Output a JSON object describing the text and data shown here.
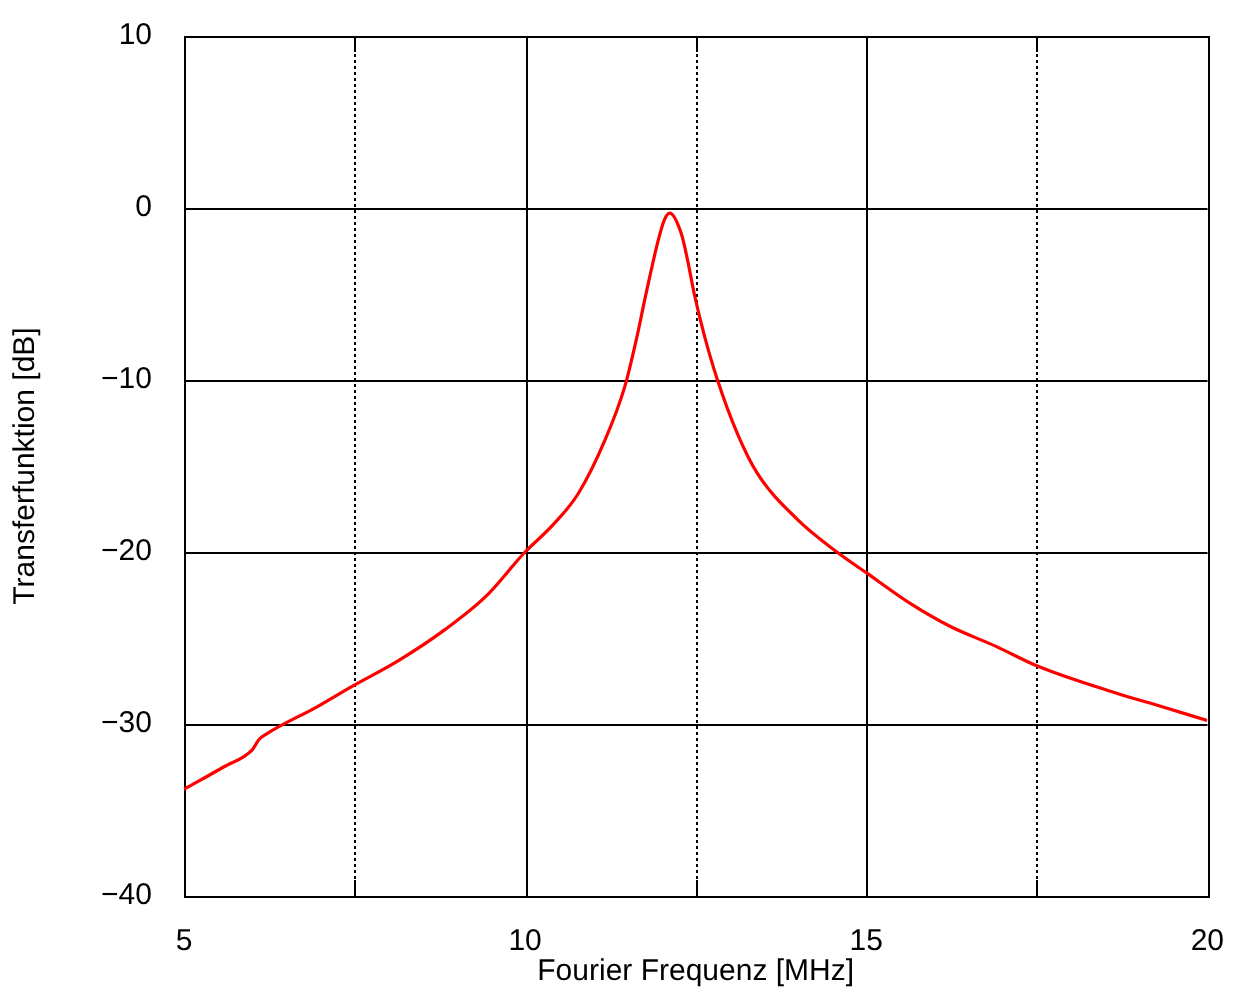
{
  "chart_data": {
    "type": "line",
    "xlabel": "Fourier Frequenz [MHz]",
    "ylabel": "Transferfunktion [dB]",
    "x": [
      5,
      5.58,
      6.0,
      6.1,
      6.2,
      6.95,
      7.47,
      8.15,
      8.83,
      9.42,
      10,
      10.39,
      10.78,
      11.17,
      11.46,
      11.65,
      11.75,
      11.95,
      12.04,
      12.12,
      12.29,
      12.38,
      12.48,
      12.62,
      12.82,
      13.11,
      13.4,
      13.99,
      14.57,
      15,
      15.65,
      16.22,
      16.91,
      17.49,
      18.66,
      19.34,
      20
    ],
    "series": [
      {
        "color": "#ff0000",
        "values": [
          -33.8,
          -32.5,
          -31.5,
          -30.9,
          -30.6,
          -29.0,
          -27.8,
          -26.3,
          -24.5,
          -22.6,
          -20,
          -18.5,
          -16.6,
          -13.5,
          -10.4,
          -7.3,
          -5.4,
          -1.9,
          -0.7,
          -0.3,
          -1.5,
          -3.0,
          -5.0,
          -7.3,
          -10,
          -13.1,
          -15.4,
          -18.1,
          -20,
          -21.2,
          -23.0,
          -24.3,
          -25.5,
          -26.6,
          -28.2,
          -29.0,
          -29.8
        ]
      }
    ],
    "xlim": [
      5,
      20
    ],
    "xticks": [
      5,
      {
        "value": 7.5,
        "label": null
      },
      10,
      {
        "value": 12.5,
        "label": null
      },
      15,
      {
        "value": 17.5,
        "label": null
      },
      20
    ],
    "ylim": [
      -40,
      10
    ],
    "yticks": [
      -40,
      -30,
      -20,
      -10,
      0,
      10
    ],
    "grid": true,
    "legend": false,
    "marker": "none",
    "line_style": "solid"
  }
}
